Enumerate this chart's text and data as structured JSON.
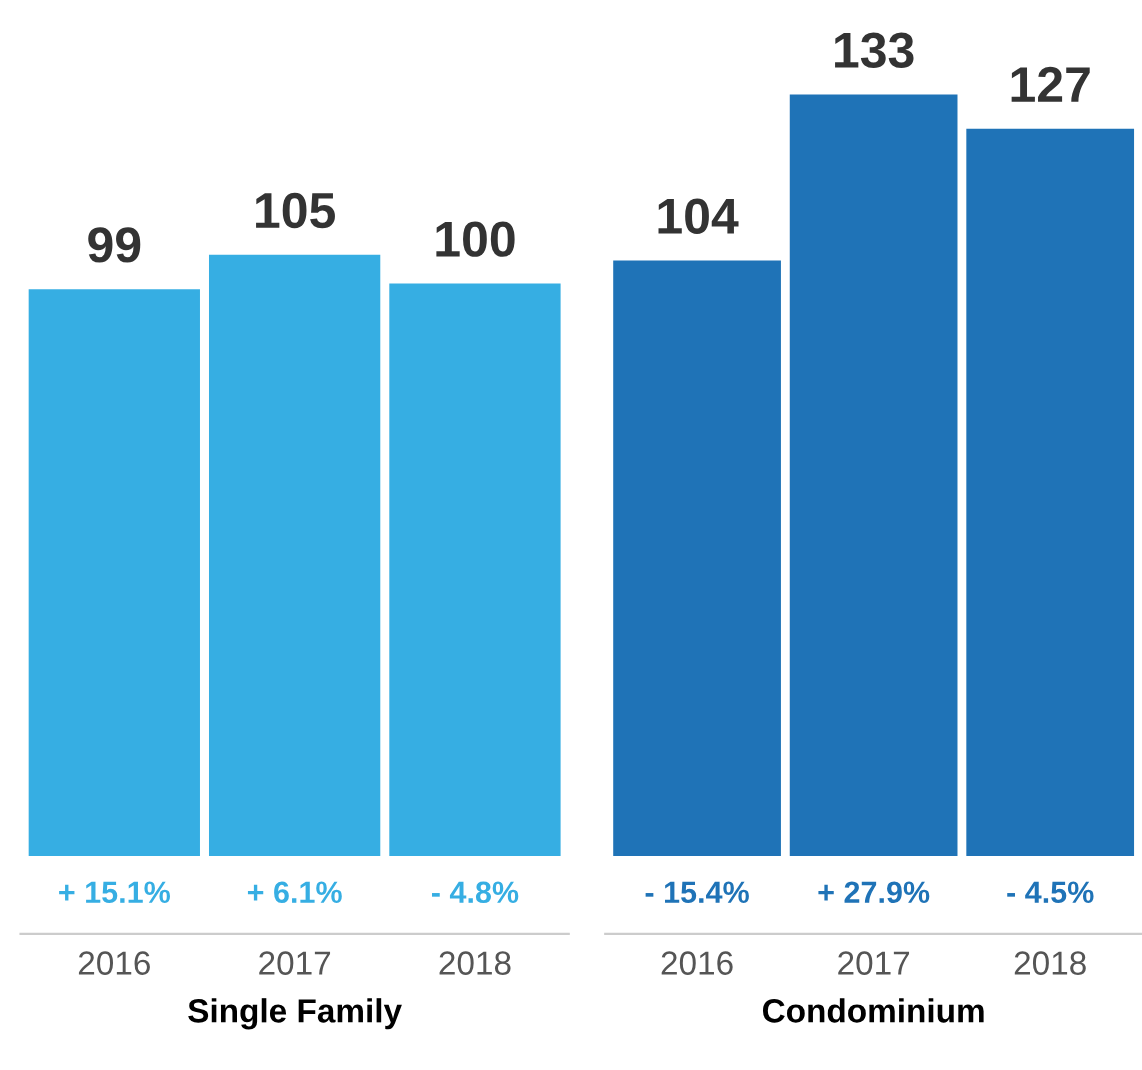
{
  "chart_data": [
    {
      "type": "bar",
      "categories": [
        "2016",
        "2017",
        "2018"
      ],
      "values": [
        99,
        105,
        100
      ],
      "color": "#36aee3",
      "data_labels": true,
      "xlabel": "Single Family",
      "grid": false,
      "legend": false,
      "annotations": [
        {
          "text": "+ 15.1%",
          "x": "2016",
          "y": 0
        },
        {
          "text": "+ 6.1%",
          "x": "2017",
          "y": 0
        },
        {
          "text": "- 4.8%",
          "x": "2018",
          "y": 0
        }
      ]
    },
    {
      "type": "bar",
      "categories": [
        "2016",
        "2017",
        "2018"
      ],
      "values": [
        104,
        133,
        127
      ],
      "color": "#1f73b7",
      "data_labels": true,
      "xlabel": "Condominium",
      "grid": false,
      "legend": false,
      "annotations": [
        {
          "text": "- 15.4%",
          "x": "2016",
          "y": 0
        },
        {
          "text": "+ 27.9%",
          "x": "2017",
          "y": 0
        },
        {
          "text": "- 4.5%",
          "x": "2018",
          "y": 0
        }
      ]
    }
  ]
}
